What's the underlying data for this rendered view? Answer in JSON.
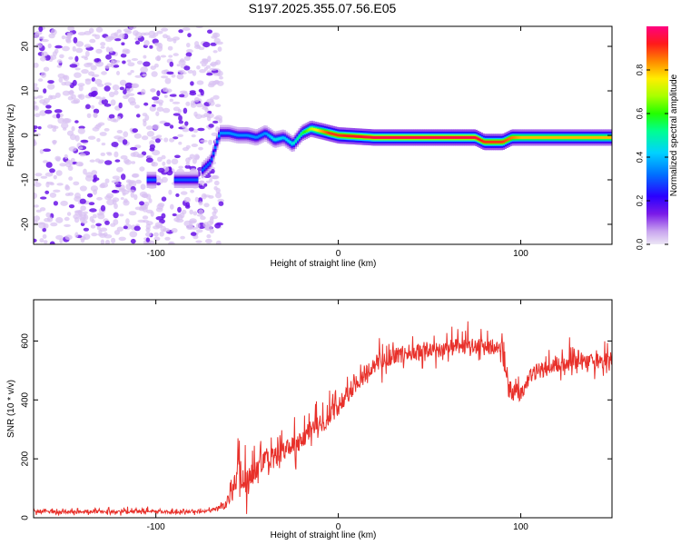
{
  "title": "S197.2025.355.07.56.E05",
  "colors": {
    "snr_line": "#e8302a",
    "axis": "#000000",
    "speckle_light": "#d8c2f2",
    "speckle_dark": "#6a14e8",
    "background": "#ffffff"
  },
  "chart_data": [
    {
      "type": "heatmap",
      "xlabel": "Height of straight line (km)",
      "ylabel": "Frequency (Hz)",
      "xlim": [
        -167,
        150
      ],
      "ylim": [
        -24.5,
        24.5
      ],
      "xticks": [
        -100,
        0,
        100
      ],
      "xtick_labels": [
        "-100",
        "0",
        "100"
      ],
      "yticks": [
        -20,
        -10,
        0,
        10,
        20
      ],
      "ytick_labels": [
        "-20",
        "-10",
        "0",
        "10",
        "20"
      ],
      "noise_region_x": [
        -167,
        -67
      ],
      "tone_trace": {
        "x": [
          -75,
          -70,
          -65,
          -60,
          -55,
          -50,
          -45,
          -40,
          -35,
          -30,
          -25,
          -20,
          -15,
          -10,
          -5,
          0,
          20,
          40,
          60,
          75,
          80,
          85,
          90,
          95,
          100,
          120,
          150
        ],
        "freq_hz": [
          -8,
          -6,
          0.5,
          0.5,
          0,
          0,
          -0.5,
          0.5,
          -1,
          -0.5,
          -2,
          0.5,
          1.5,
          1,
          0.5,
          0,
          -0.5,
          -0.5,
          -0.5,
          -0.5,
          -1.5,
          -1.5,
          -1.5,
          -0.5,
          -0.5,
          -0.5,
          -0.5
        ],
        "amplitude": [
          0.3,
          0.3,
          0.35,
          0.35,
          0.35,
          0.35,
          0.35,
          0.35,
          0.45,
          0.4,
          0.45,
          0.55,
          0.7,
          0.8,
          0.9,
          0.9,
          0.95,
          0.95,
          0.95,
          0.95,
          0.9,
          0.9,
          0.9,
          0.85,
          0.8,
          0.8,
          0.8
        ]
      },
      "early_segments": [
        {
          "x_start": -105,
          "x_end": -100,
          "freq_hz": -10,
          "amplitude": 0.3
        },
        {
          "x_start": -90,
          "x_end": -77,
          "freq_hz": -10,
          "amplitude": 0.3
        }
      ],
      "colorbar": {
        "label": "Normalized spectral amplitude",
        "range": [
          0.0,
          1.0
        ],
        "ticks": [
          0.0,
          0.2,
          0.4,
          0.6,
          0.8
        ],
        "tick_labels": [
          "0.0",
          "0.2",
          "0.4",
          "0.6",
          "0.8"
        ]
      }
    },
    {
      "type": "line",
      "xlabel": "Height of straight line (km)",
      "ylabel": "SNR (10 * v/v)",
      "xlim": [
        -167,
        150
      ],
      "ylim": [
        0,
        740
      ],
      "xticks": [
        -100,
        0,
        100
      ],
      "xtick_labels": [
        "-100",
        "0",
        "100"
      ],
      "yticks": [
        0,
        200,
        400,
        600
      ],
      "ytick_labels": [
        "0",
        "200",
        "400",
        "600"
      ],
      "series": [
        {
          "name": "SNR",
          "x": [
            -167,
            -150,
            -120,
            -90,
            -70,
            -62,
            -58,
            -55,
            -50,
            -45,
            -40,
            -35,
            -30,
            -25,
            -20,
            -15,
            -10,
            -5,
            0,
            5,
            10,
            15,
            20,
            25,
            30,
            40,
            50,
            60,
            70,
            80,
            85,
            90,
            92,
            95,
            100,
            105,
            110,
            120,
            130,
            140,
            150
          ],
          "values": [
            20,
            20,
            22,
            20,
            22,
            40,
            90,
            160,
            120,
            170,
            190,
            200,
            230,
            240,
            260,
            300,
            320,
            340,
            380,
            420,
            460,
            490,
            520,
            540,
            550,
            560,
            570,
            575,
            580,
            580,
            580,
            570,
            490,
            430,
            420,
            480,
            500,
            520,
            530,
            530,
            540
          ],
          "spread": [
            12,
            12,
            12,
            12,
            12,
            30,
            60,
            110,
            90,
            80,
            80,
            80,
            80,
            75,
            75,
            70,
            70,
            70,
            70,
            70,
            70,
            70,
            70,
            70,
            65,
            65,
            65,
            65,
            65,
            65,
            60,
            60,
            55,
            55,
            55,
            60,
            60,
            60,
            60,
            60,
            60
          ]
        }
      ]
    }
  ]
}
